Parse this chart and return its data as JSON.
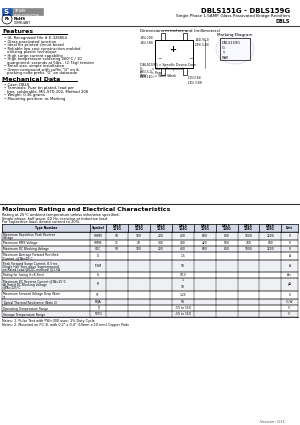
{
  "title": "DBLS151G - DBLS159G",
  "subtitle": "Single Phase 1.5AMP. Glass Passivated Bridge Rectifiers",
  "subtitle2": "DBLS",
  "bg_color": "#ffffff",
  "features_title": "Features",
  "features": [
    "UL Recognized File # E-326854",
    "Glass passivated junction",
    "Ideal for printed circuit board",
    "Reliable low cost construction utilizing molded plastic technique",
    "High surge current capability",
    "High temperature soldering guaranteed: 260°C / 10 seconds at 5lbs., (2.7kg) tension",
    "Small size, simple installation",
    "Green compound with suffix \"G\" on packing code & prefix \"G\" on datacode"
  ],
  "mech_title": "Mechanical Data",
  "mech": [
    "Case: DBLS",
    "Terminals: Pure tin plated, lead free, solderable, per MIL-STD-202, Method 208",
    "Weight: 0.36 grams",
    "Mounting position: as Marking"
  ],
  "dim_title": "Dimensions in inches and (millimeters)",
  "marking_title": "Marking Diagram",
  "marking_lines": [
    "DBLS159G = Specific Device Code",
    "G         = Green Compound",
    "Y         = Year",
    "WW        = Work Week"
  ],
  "max_ratings_title": "Maximum Ratings and Electrical Characteristics",
  "max_ratings_note1": "Rating at 25°C ambient temperature unless otherwise specified.",
  "max_ratings_note2": "Single phase, half wave, 60 Hz, resistive or inductive load.",
  "max_ratings_note3": "For capacitive load, derate current to 20%.",
  "table_headers": [
    "Type Number",
    "Symbol",
    "DBLS\n151G",
    "DBLS\n152G",
    "DBLS\n153G",
    "DBLS\n154G",
    "DBLS\n155G",
    "DBLS\n156G",
    "DBLS\n158G",
    "DBLS\n159G",
    "Unit"
  ],
  "table_rows": [
    [
      "Maximum Repetitive Peak Reverse Voltage",
      "VRRM",
      "50",
      "100",
      "200",
      "400",
      "600",
      "800",
      "1000",
      "1200",
      "V"
    ],
    [
      "Maximum RMS Voltage",
      "VRMS",
      "35",
      "70",
      "140",
      "280",
      "420",
      "560",
      "700",
      "840",
      "V"
    ],
    [
      "Maximum DC Blocking Voltage",
      "VDC",
      "50",
      "100",
      "200",
      "400",
      "600",
      "800",
      "1000",
      "1200",
      "V"
    ],
    [
      "Maximum Average Forward Rectified Current  @TA=40°C",
      "IO",
      "",
      "",
      "",
      "1.5",
      "",
      "",
      "",
      "",
      "A"
    ],
    [
      "Peak Forward Surge Current, 8.3 ms Single Half Sine-wave Superimposed on Rated Load (JEDEC method)\n@1.5A",
      "IFSM",
      "",
      "",
      "",
      "50",
      "",
      "",
      "",
      "",
      "A"
    ],
    [
      "Rating for fusing (t<8.3ms)",
      "I²t",
      "",
      "",
      "",
      "10.3",
      "",
      "",
      "",
      "",
      "A²s"
    ],
    [
      "Maximum DC Reverse Current\n@TA=25°C\nAt Rated DC Blocking Voltage\n@TA=125°C",
      "IR",
      "",
      "",
      "",
      "1\n\n10",
      "",
      "",
      "",
      "",
      "µA"
    ],
    [
      "Maximum Forward Voltage Drop (Note 1)",
      "VF",
      "",
      "",
      "",
      "1.25",
      "",
      "",
      "",
      "",
      "V"
    ],
    [
      "Typical Thermal Resistance (Note 2)",
      "RθJA",
      "",
      "",
      "",
      "50",
      "",
      "",
      "",
      "",
      "°C/W"
    ],
    [
      "Operating Temperature Range",
      "TJ",
      "",
      "",
      "",
      "-55 to 150",
      "",
      "",
      "",
      "",
      "°C"
    ],
    [
      "Storage Temperature Range",
      "TSTG",
      "",
      "",
      "",
      "-55 to 150",
      "",
      "",
      "",
      "",
      "°C"
    ]
  ],
  "notes": [
    "Notes: 1. Pulse Test with PW=300 usec, 1% Duty Cycle",
    "Notes: 2. Mounted on P.C.B. with 0.2\" x 0.4\" (10mm x 10 mm) Copper Pads"
  ],
  "version": "Version: G11"
}
